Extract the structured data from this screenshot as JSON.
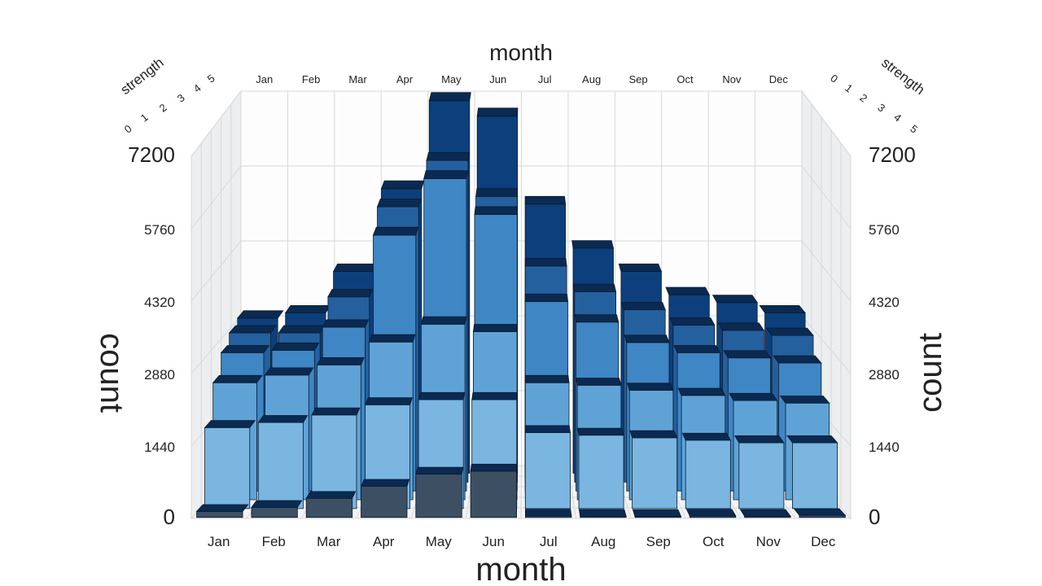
{
  "chart_data": {
    "type": "3d-bar",
    "months": [
      "Jan",
      "Feb",
      "Mar",
      "Apr",
      "May",
      "Jun",
      "Jul",
      "Aug",
      "Sep",
      "Oct",
      "Nov",
      "Dec"
    ],
    "x_axis_title": "month",
    "y_axis_title": "count",
    "depth_axis_title": "strength",
    "depth_ticks": [
      "0",
      "1",
      "2",
      "3",
      "4",
      "5"
    ],
    "count_ticks": [
      "0",
      "1440",
      "2880",
      "4320",
      "5760",
      "7200"
    ],
    "ylim": [
      0,
      7200
    ],
    "depth_range": [
      0,
      5
    ],
    "bars": [
      {
        "month": "Jan",
        "layers": [
          {
            "strength": 0,
            "count": 120
          },
          {
            "strength": 1,
            "count": 1600
          },
          {
            "strength": 2,
            "count": 2300
          },
          {
            "strength": 3,
            "count": 2700
          },
          {
            "strength": 4,
            "count": 2900
          },
          {
            "strength": 5,
            "count": 3000
          }
        ]
      },
      {
        "month": "Feb",
        "layers": [
          {
            "strength": 0,
            "count": 200
          },
          {
            "strength": 1,
            "count": 1700
          },
          {
            "strength": 2,
            "count": 2450
          },
          {
            "strength": 3,
            "count": 2750
          },
          {
            "strength": 4,
            "count": 2900
          },
          {
            "strength": 5,
            "count": 3100
          }
        ]
      },
      {
        "month": "Mar",
        "layers": [
          {
            "strength": 0,
            "count": 380
          },
          {
            "strength": 1,
            "count": 1850
          },
          {
            "strength": 2,
            "count": 2650
          },
          {
            "strength": 3,
            "count": 3200
          },
          {
            "strength": 4,
            "count": 3600
          },
          {
            "strength": 5,
            "count": 3900
          }
        ]
      },
      {
        "month": "Apr",
        "layers": [
          {
            "strength": 0,
            "count": 620
          },
          {
            "strength": 1,
            "count": 2050
          },
          {
            "strength": 2,
            "count": 3100
          },
          {
            "strength": 3,
            "count": 5000
          },
          {
            "strength": 4,
            "count": 5350
          },
          {
            "strength": 5,
            "count": 5500
          }
        ]
      },
      {
        "month": "May",
        "layers": [
          {
            "strength": 0,
            "count": 860
          },
          {
            "strength": 1,
            "count": 2150
          },
          {
            "strength": 2,
            "count": 3450
          },
          {
            "strength": 3,
            "count": 6100
          },
          {
            "strength": 4,
            "count": 6250
          },
          {
            "strength": 5,
            "count": 7200
          }
        ]
      },
      {
        "month": "Jun",
        "layers": [
          {
            "strength": 0,
            "count": 920
          },
          {
            "strength": 1,
            "count": 2150
          },
          {
            "strength": 2,
            "count": 3300
          },
          {
            "strength": 3,
            "count": 5400
          },
          {
            "strength": 4,
            "count": 5550
          },
          {
            "strength": 5,
            "count": 6900
          }
        ]
      },
      {
        "month": "Jul",
        "layers": [
          {
            "strength": 0,
            "count": 30
          },
          {
            "strength": 1,
            "count": 1500
          },
          {
            "strength": 2,
            "count": 2300
          },
          {
            "strength": 3,
            "count": 3700
          },
          {
            "strength": 4,
            "count": 4200
          },
          {
            "strength": 5,
            "count": 5200
          }
        ]
      },
      {
        "month": "Aug",
        "layers": [
          {
            "strength": 0,
            "count": 25
          },
          {
            "strength": 1,
            "count": 1450
          },
          {
            "strength": 2,
            "count": 2250
          },
          {
            "strength": 3,
            "count": 3300
          },
          {
            "strength": 4,
            "count": 3700
          },
          {
            "strength": 5,
            "count": 4350
          }
        ]
      },
      {
        "month": "Sep",
        "layers": [
          {
            "strength": 0,
            "count": 20
          },
          {
            "strength": 1,
            "count": 1400
          },
          {
            "strength": 2,
            "count": 2150
          },
          {
            "strength": 3,
            "count": 2900
          },
          {
            "strength": 4,
            "count": 3350
          },
          {
            "strength": 5,
            "count": 3900
          }
        ]
      },
      {
        "month": "Oct",
        "layers": [
          {
            "strength": 0,
            "count": 30
          },
          {
            "strength": 1,
            "count": 1350
          },
          {
            "strength": 2,
            "count": 2050
          },
          {
            "strength": 3,
            "count": 2700
          },
          {
            "strength": 4,
            "count": 3050
          },
          {
            "strength": 5,
            "count": 3450
          }
        ]
      },
      {
        "month": "Nov",
        "layers": [
          {
            "strength": 0,
            "count": 25
          },
          {
            "strength": 1,
            "count": 1300
          },
          {
            "strength": 2,
            "count": 1950
          },
          {
            "strength": 3,
            "count": 2600
          },
          {
            "strength": 4,
            "count": 2950
          },
          {
            "strength": 5,
            "count": 3300
          }
        ]
      },
      {
        "month": "Dec",
        "layers": [
          {
            "strength": 0,
            "count": 40
          },
          {
            "strength": 1,
            "count": 1300
          },
          {
            "strength": 2,
            "count": 1900
          },
          {
            "strength": 3,
            "count": 2500
          },
          {
            "strength": 4,
            "count": 2850
          },
          {
            "strength": 5,
            "count": 3100
          }
        ]
      }
    ],
    "colors": {
      "layers": [
        "#3d4f63",
        "#7ab6e0",
        "#5fa3d6",
        "#3f86c4",
        "#24609e",
        "#0d3f7c"
      ],
      "grid": "#d6d8da",
      "wall": "#eceeef",
      "floor": "#f3f4f4",
      "edge": "#0a1a2e"
    }
  }
}
